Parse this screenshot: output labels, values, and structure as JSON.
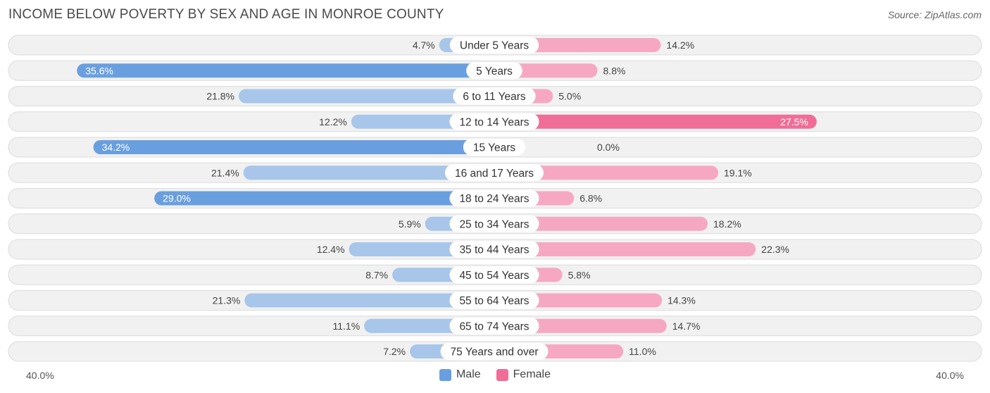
{
  "header": {
    "title": "INCOME BELOW POVERTY BY SEX AND AGE IN MONROE COUNTY",
    "source": "Source: ZipAtlas.com"
  },
  "colors": {
    "male_strong": "#6a9fdf",
    "male_light": "#a7c6ea",
    "female_strong": "#f06d98",
    "female_light": "#f6a8c2",
    "row_bg": "#f1f1f1",
    "row_border": "#dcdcdc"
  },
  "chart_data": {
    "type": "bar",
    "orientation": "horizontal-diverging",
    "title": "INCOME BELOW POVERTY BY SEX AND AGE IN MONROE COUNTY",
    "categories": [
      "Under 5 Years",
      "5 Years",
      "6 to 11 Years",
      "12 to 14 Years",
      "15 Years",
      "16 and 17 Years",
      "18 to 24 Years",
      "25 to 34 Years",
      "35 to 44 Years",
      "45 to 54 Years",
      "55 to 64 Years",
      "65 to 74 Years",
      "75 Years and over"
    ],
    "series": [
      {
        "name": "Male",
        "values": [
          4.7,
          35.6,
          21.8,
          12.2,
          34.2,
          21.4,
          29.0,
          5.9,
          12.4,
          8.7,
          21.3,
          11.1,
          7.2
        ]
      },
      {
        "name": "Female",
        "values": [
          14.2,
          8.8,
          5.0,
          27.5,
          0.0,
          19.1,
          6.8,
          18.2,
          22.3,
          5.8,
          14.3,
          14.7,
          11.0
        ]
      }
    ],
    "xlim": [
      -40,
      40
    ],
    "axis_left_label": "40.0%",
    "axis_right_label": "40.0%",
    "value_suffix": "%"
  },
  "legend": {
    "male_label": "Male",
    "female_label": "Female"
  }
}
